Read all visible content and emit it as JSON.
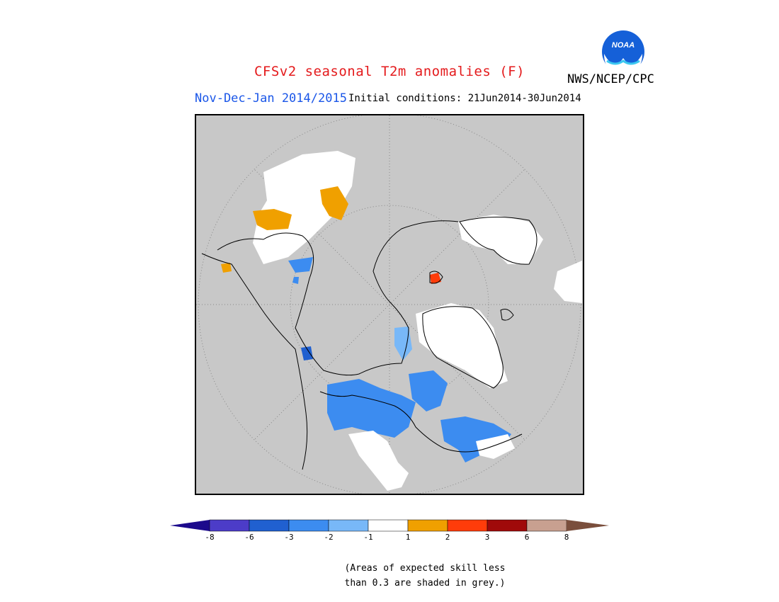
{
  "header": {
    "title": "CFSv2 seasonal T2m anomalies (F)",
    "agency": "NWS/NCEP/CPC",
    "season": "Nov-Dec-Jan 2014/2015",
    "initial_conditions": "Initial conditions: 21Jun2014-30Jun2014"
  },
  "logo": {
    "text": "NOAA"
  },
  "map": {
    "projection": "north-polar-stereographic",
    "background_color": "#c8c8c8"
  },
  "colorbar": {
    "colors": [
      "#1c0a8c",
      "#4c3cc8",
      "#2060d0",
      "#3c8cf0",
      "#78b8f8",
      "#ffffff",
      "#f0a000",
      "#ff3c0a",
      "#a00a0a",
      "#c8a090",
      "#7a4e3c"
    ],
    "labels": [
      "-8",
      "-6",
      "-3",
      "-2",
      "-1",
      "1",
      "2",
      "3",
      "6",
      "8"
    ]
  },
  "footnote": {
    "line1": "(Areas of expected skill less",
    "line2": "than 0.3 are shaded in grey.)"
  }
}
